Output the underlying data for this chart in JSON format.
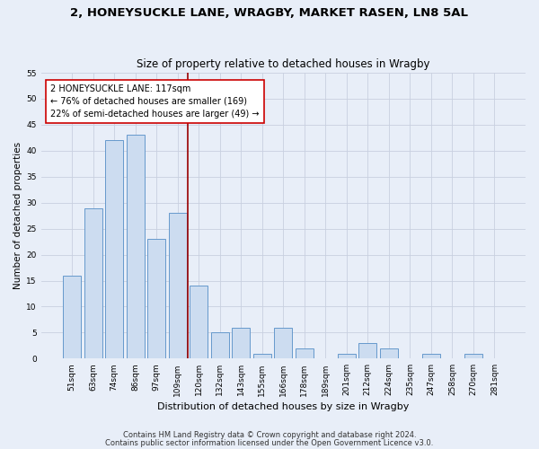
{
  "title1": "2, HONEYSUCKLE LANE, WRAGBY, MARKET RASEN, LN8 5AL",
  "title2": "Size of property relative to detached houses in Wragby",
  "xlabel": "Distribution of detached houses by size in Wragby",
  "ylabel": "Number of detached properties",
  "bar_labels": [
    "51sqm",
    "63sqm",
    "74sqm",
    "86sqm",
    "97sqm",
    "109sqm",
    "120sqm",
    "132sqm",
    "143sqm",
    "155sqm",
    "166sqm",
    "178sqm",
    "189sqm",
    "201sqm",
    "212sqm",
    "224sqm",
    "235sqm",
    "247sqm",
    "258sqm",
    "270sqm",
    "281sqm"
  ],
  "bar_values": [
    16,
    29,
    42,
    43,
    23,
    28,
    14,
    5,
    6,
    1,
    6,
    2,
    0,
    1,
    3,
    2,
    0,
    1,
    0,
    1,
    0
  ],
  "bar_color": "#ccdcf0",
  "bar_edge_color": "#6699cc",
  "vline_x": 5.5,
  "vline_color": "#990000",
  "annotation_line1": "2 HONEYSUCKLE LANE: 117sqm",
  "annotation_line2": "← 76% of detached houses are smaller (169)",
  "annotation_line3": "22% of semi-detached houses are larger (49) →",
  "annotation_box_color": "#ffffff",
  "annotation_box_edgecolor": "#cc0000",
  "ylim": [
    0,
    55
  ],
  "yticks": [
    0,
    5,
    10,
    15,
    20,
    25,
    30,
    35,
    40,
    45,
    50,
    55
  ],
  "footer1": "Contains HM Land Registry data © Crown copyright and database right 2024.",
  "footer2": "Contains public sector information licensed under the Open Government Licence v3.0.",
  "bg_color": "#e8eef8",
  "plot_bg_color": "#e8eef8",
  "grid_color": "#c8d0e0",
  "title1_fontsize": 9.5,
  "title2_fontsize": 8.5,
  "xlabel_fontsize": 8,
  "ylabel_fontsize": 7.5,
  "tick_fontsize": 6.5,
  "annotation_fontsize": 7,
  "footer_fontsize": 6
}
